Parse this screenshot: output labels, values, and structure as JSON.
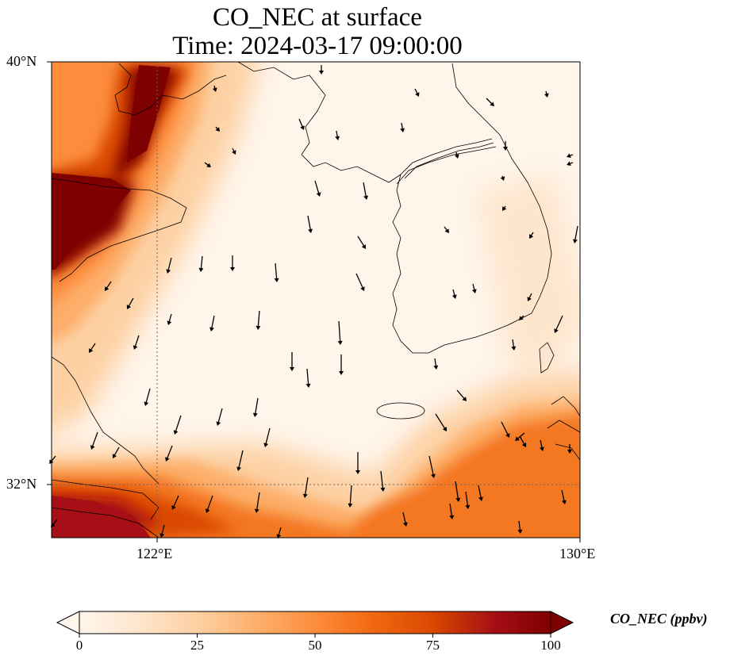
{
  "title": "CO_NEC at surface",
  "subtitle": "Time: 2024-03-17 09:00:00",
  "axes": {
    "lat_labels": [
      "40°N",
      "32°N"
    ],
    "lon_labels": [
      "122°E",
      "130°E"
    ],
    "lat_range": [
      31,
      40
    ],
    "lon_range": [
      120,
      130
    ]
  },
  "colorbar": {
    "label": "CO_NEC (ppbv)",
    "ticks": [
      "0",
      "25",
      "50",
      "75",
      "100"
    ],
    "min": 0,
    "max": 100,
    "colors": [
      "#fff5eb",
      "#fee6ce",
      "#fdd0a2",
      "#fdae6b",
      "#fd8d3c",
      "#f16913",
      "#d94801",
      "#a50f15",
      "#7f0000"
    ]
  },
  "chart_data": {
    "type": "heatmap",
    "variable": "CO_NEC",
    "units": "ppbv",
    "level": "surface",
    "time": "2024-03-17 09:00:00",
    "high_regions": [
      "northwest coast (Bohai area)",
      "southwest (Shanghai / Yangtze mouth)",
      "southeast plume toward Kyushu"
    ],
    "low_regions": [
      "Yellow Sea center",
      "Korean Peninsula north"
    ],
    "wind_vectors": "predominantly northerly / north-northwesterly"
  }
}
